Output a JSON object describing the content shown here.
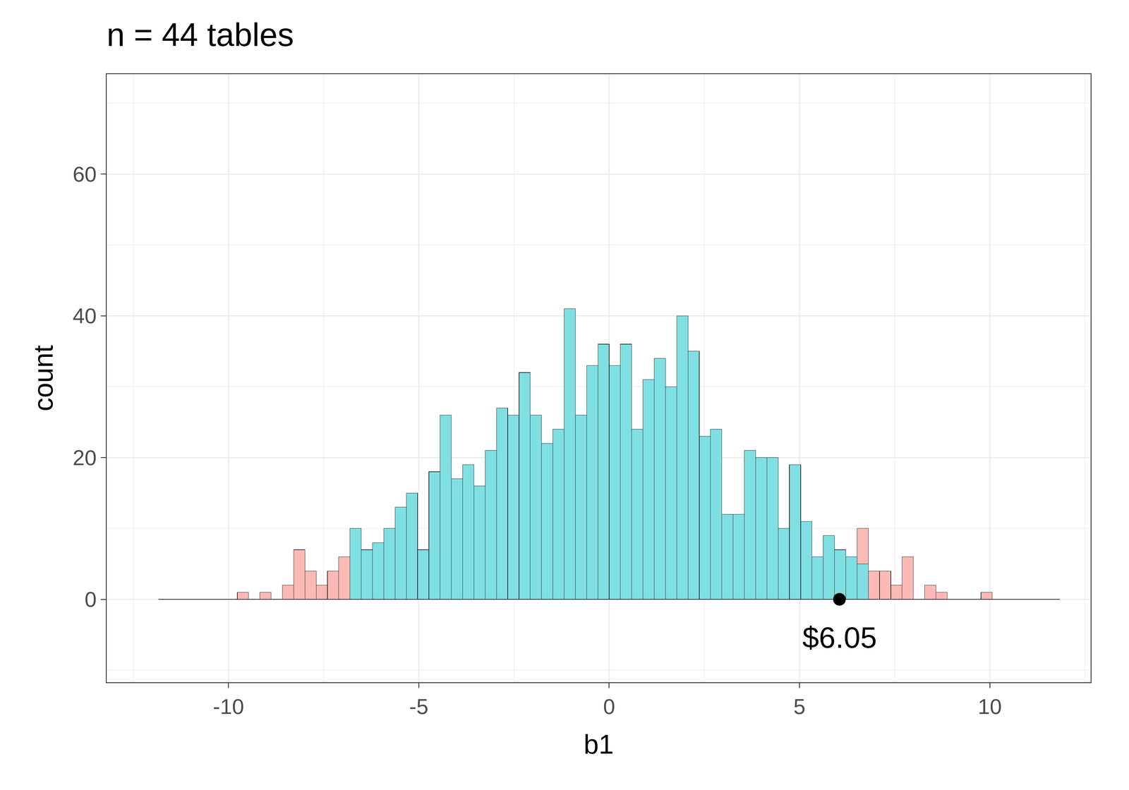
{
  "chart_data": {
    "type": "histogram",
    "title": "n = 44 tables",
    "x_label": "b1",
    "y_label": "count",
    "bins": [
      -11.84,
      -11.544,
      -11.248,
      -10.952,
      -10.656,
      -10.36,
      -10.064,
      -9.768,
      -9.472,
      -9.176,
      -8.88,
      -8.584,
      -8.288,
      -7.992,
      -7.696,
      -7.4,
      -7.104,
      -6.808,
      -6.512,
      -6.216,
      -5.92,
      -5.624,
      -5.328,
      -5.032,
      -4.736,
      -4.44,
      -4.144,
      -3.848,
      -3.552,
      -3.256,
      -2.96,
      -2.664,
      -2.368,
      -2.072,
      -1.776,
      -1.48,
      -1.184,
      -0.888,
      -0.592,
      -0.296,
      0,
      0.296,
      0.592,
      0.888,
      1.184,
      1.48,
      1.776,
      2.072,
      2.368,
      2.664,
      2.96,
      3.256,
      3.552,
      3.848,
      4.144,
      4.44,
      4.736,
      5.032,
      5.328,
      5.624,
      5.92,
      6.216,
      6.512,
      6.808,
      7.104,
      7.4,
      7.696,
      7.992,
      8.288,
      8.584,
      8.88,
      9.176,
      9.472,
      9.768,
      10.064,
      10.36,
      10.656,
      10.952,
      11.248,
      11.544,
      11.84
    ],
    "series": [
      {
        "color": "#80DFE2",
        "values": [
          0,
          0,
          0,
          0,
          0,
          0,
          0,
          0,
          0,
          0,
          0,
          0,
          0,
          0,
          0,
          0,
          0,
          10,
          7,
          8,
          10,
          13,
          15,
          7,
          18,
          26,
          17,
          19,
          16,
          21,
          27,
          26,
          32,
          26,
          22,
          24,
          41,
          26,
          33,
          36,
          33,
          36,
          24,
          31,
          34,
          30,
          40,
          35,
          23,
          24,
          12,
          12,
          21,
          20,
          20,
          10,
          19,
          11,
          6,
          9,
          7,
          6,
          5,
          0,
          0,
          0,
          0,
          0,
          0,
          0,
          0,
          0,
          0,
          0,
          0,
          0,
          0,
          0,
          0,
          0
        ]
      },
      {
        "color": "#FBBAB6",
        "values": [
          0,
          0,
          0,
          0,
          0,
          0,
          0,
          1,
          0,
          1,
          0,
          2,
          7,
          4,
          2,
          4,
          6,
          0,
          0,
          0,
          0,
          0,
          0,
          0,
          0,
          0,
          0,
          0,
          0,
          0,
          0,
          0,
          0,
          0,
          0,
          0,
          0,
          0,
          0,
          0,
          0,
          0,
          0,
          0,
          0,
          0,
          0,
          0,
          0,
          0,
          0,
          0,
          0,
          0,
          0,
          0,
          0,
          0,
          0,
          0,
          0,
          0,
          5,
          4,
          4,
          2,
          6,
          0,
          2,
          1,
          0,
          0,
          0,
          1,
          0,
          0,
          0,
          0,
          0,
          0
        ]
      }
    ],
    "stacked": true,
    "annotations": [
      {
        "x": 6.05,
        "y": 0,
        "text": "$6.05",
        "color": "#000000"
      }
    ],
    "xlim": [
      -13.2,
      12.65
    ],
    "xticks": [
      -10,
      -5,
      0,
      5,
      10
    ],
    "ylim": [
      -11.7,
      74.1
    ],
    "yticks": [
      0,
      20,
      40,
      60
    ],
    "grid": true
  }
}
